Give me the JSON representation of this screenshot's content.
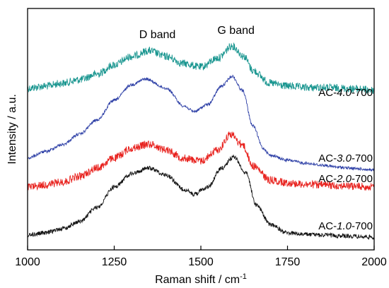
{
  "chart_data": {
    "type": "line",
    "xlabel": "Raman shift / cm",
    "xlabel_sup": "-1",
    "ylabel": "Intensity / a.u.",
    "xlim": [
      1000,
      2000
    ],
    "x_ticks": [
      1000,
      1250,
      1500,
      1750,
      2000
    ],
    "x_tick_labels": [
      "1000",
      "1250",
      "1500",
      "1750",
      "2000"
    ],
    "y_ticks_shown": false,
    "grid": false,
    "legend": "none (series labelled inline at right)",
    "annotations": [
      {
        "text": "D band",
        "x": 1350
      },
      {
        "text": "G band",
        "x": 1585
      }
    ],
    "series": [
      {
        "label_prefix": "AC-",
        "label_num": "4.0",
        "label_suffix": "-700",
        "color": "#1a9690",
        "x": [
          1000,
          1050,
          1100,
          1150,
          1200,
          1250,
          1300,
          1350,
          1400,
          1450,
          1500,
          1550,
          1590,
          1625,
          1650,
          1700,
          1750,
          1800,
          1850,
          1900,
          1950,
          2000
        ],
        "y": [
          125,
          122,
          118,
          113,
          105,
          92,
          80,
          72,
          80,
          90,
          95,
          82,
          65,
          80,
          100,
          118,
          122,
          124,
          124,
          125,
          126,
          128
        ]
      },
      {
        "label_prefix": "AC-",
        "label_num": "3.0",
        "label_suffix": "-700",
        "color": "#2d3fa6",
        "x": [
          1000,
          1050,
          1100,
          1150,
          1200,
          1250,
          1300,
          1340,
          1400,
          1450,
          1480,
          1520,
          1560,
          1590,
          1620,
          1650,
          1680,
          1700,
          1750,
          1800,
          1850,
          1900,
          1950,
          2000
        ],
        "y": [
          224,
          215,
          205,
          190,
          170,
          142,
          120,
          112,
          125,
          150,
          158,
          148,
          122,
          108,
          128,
          178,
          210,
          220,
          227,
          231,
          234,
          237,
          239,
          241
        ]
      },
      {
        "label_prefix": "AC-",
        "label_num": "2.0",
        "label_suffix": "-700",
        "color": "#e8231f",
        "x": [
          1000,
          1050,
          1100,
          1150,
          1200,
          1250,
          1300,
          1350,
          1400,
          1450,
          1500,
          1550,
          1585,
          1620,
          1650,
          1700,
          1750,
          1800,
          1850,
          1900,
          1950,
          2000
        ],
        "y": [
          265,
          262,
          258,
          250,
          238,
          224,
          210,
          204,
          212,
          224,
          228,
          212,
          190,
          205,
          235,
          255,
          259,
          261,
          262,
          263,
          264,
          265
        ]
      },
      {
        "label_prefix": "AC-",
        "label_num": "1.0",
        "label_suffix": "-700",
        "color": "#111111",
        "x": [
          1000,
          1050,
          1100,
          1150,
          1200,
          1250,
          1300,
          1350,
          1400,
          1450,
          1480,
          1520,
          1560,
          1595,
          1630,
          1660,
          1700,
          1750,
          1800,
          1850,
          1900,
          1950,
          2000
        ],
        "y": [
          333,
          330,
          324,
          314,
          294,
          265,
          246,
          238,
          248,
          268,
          275,
          265,
          238,
          222,
          245,
          290,
          318,
          330,
          332,
          333,
          334,
          335,
          336
        ]
      }
    ]
  }
}
